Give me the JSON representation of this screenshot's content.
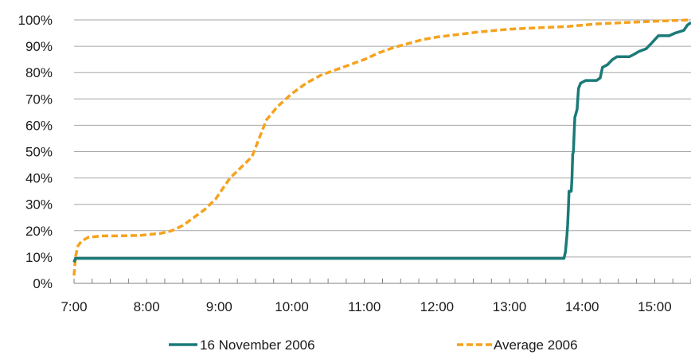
{
  "chart_data": {
    "type": "line",
    "title": "",
    "xlabel": "",
    "ylabel": "",
    "x_unit": "hours of day",
    "xlim": [
      7.0,
      15.5
    ],
    "ylim": [
      0,
      100
    ],
    "y_ticks": [
      0,
      10,
      20,
      30,
      40,
      50,
      60,
      70,
      80,
      90,
      100
    ],
    "y_tick_labels": [
      "0%",
      "10%",
      "20%",
      "30%",
      "40%",
      "50%",
      "60%",
      "70%",
      "80%",
      "90%",
      "100%"
    ],
    "x_ticks": [
      7,
      8,
      9,
      10,
      11,
      12,
      13,
      14,
      15
    ],
    "x_tick_labels": [
      "7:00",
      "8:00",
      "9:00",
      "10:00",
      "11:00",
      "12:00",
      "13:00",
      "14:00",
      "15:00"
    ],
    "grid": "horizontal",
    "legend_position": "bottom",
    "series": [
      {
        "name": "16 November 2006",
        "color": "#1a7a78",
        "style": "solid",
        "points": [
          [
            7.0,
            8
          ],
          [
            7.02,
            9.5
          ],
          [
            13.75,
            9.5
          ],
          [
            13.77,
            12
          ],
          [
            13.79,
            18
          ],
          [
            13.8,
            22
          ],
          [
            13.81,
            28
          ],
          [
            13.82,
            35
          ],
          [
            13.85,
            35
          ],
          [
            13.86,
            40
          ],
          [
            13.87,
            49
          ],
          [
            13.88,
            50
          ],
          [
            13.89,
            57
          ],
          [
            13.9,
            63
          ],
          [
            13.93,
            66
          ],
          [
            13.95,
            74
          ],
          [
            13.98,
            76
          ],
          [
            14.05,
            77
          ],
          [
            14.2,
            77
          ],
          [
            14.25,
            78
          ],
          [
            14.28,
            82
          ],
          [
            14.35,
            83
          ],
          [
            14.42,
            85
          ],
          [
            14.48,
            86
          ],
          [
            14.65,
            86
          ],
          [
            14.72,
            87
          ],
          [
            14.78,
            88
          ],
          [
            14.88,
            89
          ],
          [
            14.95,
            91
          ],
          [
            15.05,
            94
          ],
          [
            15.2,
            94
          ],
          [
            15.28,
            95
          ],
          [
            15.4,
            96
          ],
          [
            15.45,
            98
          ],
          [
            15.5,
            99
          ]
        ]
      },
      {
        "name": "Average 2006",
        "color": "#f5a21e",
        "style": "dashed",
        "points": [
          [
            7.0,
            3
          ],
          [
            7.02,
            10
          ],
          [
            7.05,
            14
          ],
          [
            7.1,
            16
          ],
          [
            7.2,
            17.5
          ],
          [
            7.4,
            18
          ],
          [
            7.6,
            18
          ],
          [
            7.9,
            18.2
          ],
          [
            8.2,
            19
          ],
          [
            8.35,
            20
          ],
          [
            8.5,
            22
          ],
          [
            8.65,
            25
          ],
          [
            8.8,
            28
          ],
          [
            8.95,
            32
          ],
          [
            9.05,
            36
          ],
          [
            9.15,
            40
          ],
          [
            9.3,
            44
          ],
          [
            9.45,
            48
          ],
          [
            9.55,
            55
          ],
          [
            9.65,
            62
          ],
          [
            9.8,
            67
          ],
          [
            10.0,
            72
          ],
          [
            10.2,
            76
          ],
          [
            10.4,
            79
          ],
          [
            10.6,
            81
          ],
          [
            10.8,
            83
          ],
          [
            11.0,
            85
          ],
          [
            11.2,
            87.5
          ],
          [
            11.4,
            89.5
          ],
          [
            11.6,
            91
          ],
          [
            11.8,
            92.5
          ],
          [
            12.0,
            93.5
          ],
          [
            12.3,
            94.5
          ],
          [
            12.6,
            95.5
          ],
          [
            13.0,
            96.5
          ],
          [
            13.4,
            97
          ],
          [
            13.8,
            97.5
          ],
          [
            14.2,
            98.5
          ],
          [
            14.6,
            99
          ],
          [
            15.0,
            99.5
          ],
          [
            15.5,
            100
          ]
        ]
      }
    ]
  }
}
